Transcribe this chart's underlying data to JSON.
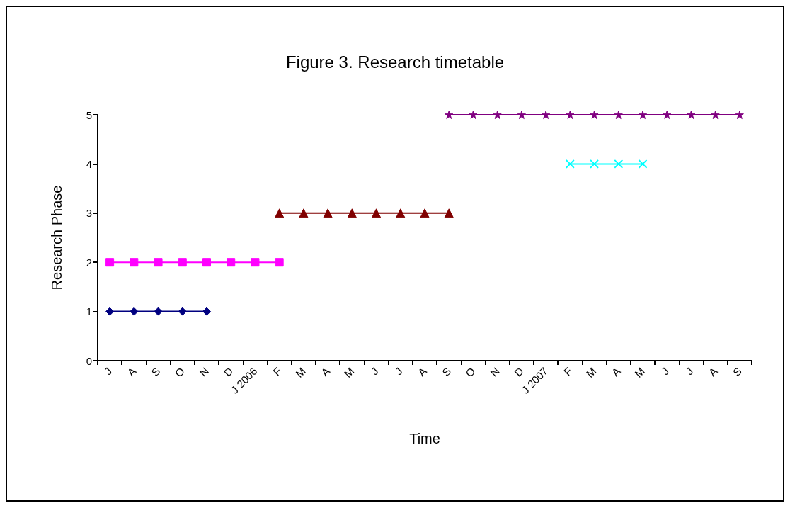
{
  "chart_data": {
    "type": "line",
    "title": "Figure 3. Research timetable",
    "xlabel": "Time",
    "ylabel": "Research Phase",
    "categories": [
      "J",
      "A",
      "S",
      "O",
      "N",
      "D",
      "J 2006",
      "F",
      "M",
      "A",
      "M",
      "J",
      "J",
      "A",
      "S",
      "O",
      "N",
      "D",
      "J 2007",
      "F",
      "M",
      "A",
      "M",
      "J",
      "J",
      "A",
      "S"
    ],
    "ylim": [
      0,
      5
    ],
    "yticks": [
      0,
      1,
      2,
      3,
      4,
      5
    ],
    "grid": false,
    "line_style": "solid",
    "series": [
      {
        "color": "#000080",
        "marker": "diamond",
        "values": [
          1,
          1,
          1,
          1,
          1,
          null,
          null,
          null,
          null,
          null,
          null,
          null,
          null,
          null,
          null,
          null,
          null,
          null,
          null,
          null,
          null,
          null,
          null,
          null,
          null,
          null,
          null
        ]
      },
      {
        "color": "#ff00ff",
        "marker": "square",
        "values": [
          2,
          2,
          2,
          2,
          2,
          2,
          2,
          2,
          null,
          null,
          null,
          null,
          null,
          null,
          null,
          null,
          null,
          null,
          null,
          null,
          null,
          null,
          null,
          null,
          null,
          null,
          null
        ]
      },
      {
        "color": "#800000",
        "marker": "triangle",
        "values": [
          null,
          null,
          null,
          null,
          null,
          null,
          null,
          3,
          3,
          3,
          3,
          3,
          3,
          3,
          3,
          null,
          null,
          null,
          null,
          null,
          null,
          null,
          null,
          null,
          null,
          null,
          null
        ]
      },
      {
        "color": "#00ffff",
        "marker": "cross",
        "values": [
          null,
          null,
          null,
          null,
          null,
          null,
          null,
          null,
          null,
          null,
          null,
          null,
          null,
          null,
          null,
          null,
          null,
          null,
          null,
          4,
          4,
          4,
          4,
          null,
          null,
          null,
          null
        ]
      },
      {
        "color": "#800080",
        "marker": "star",
        "values": [
          null,
          null,
          null,
          null,
          null,
          null,
          null,
          null,
          null,
          null,
          null,
          null,
          null,
          null,
          5,
          5,
          5,
          5,
          5,
          5,
          5,
          5,
          5,
          5,
          5,
          5,
          5
        ]
      }
    ]
  }
}
